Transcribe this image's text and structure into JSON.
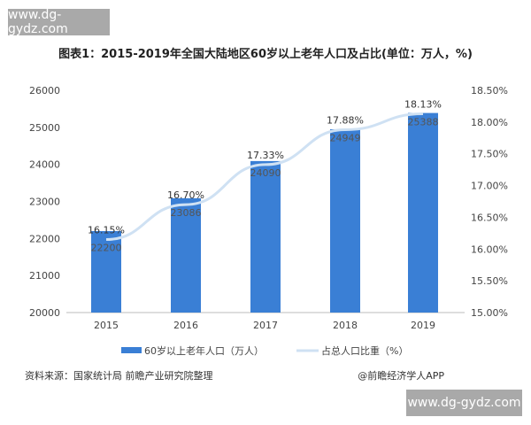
{
  "watermark": "www.dg-gydz.com",
  "chart_data": {
    "type": "bar",
    "title": "图表1：2015-2019年全国大陆地区60岁以上老年人口及占比(单位：万人，%)",
    "categories": [
      "2015",
      "2016",
      "2017",
      "2018",
      "2019"
    ],
    "series": [
      {
        "name": "60岁以上老年人口（万人）",
        "type": "bar",
        "axis": "left",
        "values": [
          22200,
          23086,
          24090,
          24949,
          25388
        ],
        "color": "#3a7fd5"
      },
      {
        "name": "占总人口比重（%）",
        "type": "line",
        "axis": "right",
        "values": [
          16.15,
          16.7,
          17.33,
          17.88,
          18.13
        ],
        "labels": [
          "16.15%",
          "16.70%",
          "17.33%",
          "17.88%",
          "18.13%"
        ],
        "color": "#cfe1f3"
      }
    ],
    "left_axis": {
      "ylim": [
        20000,
        26000
      ],
      "ticks": [
        "20000",
        "21000",
        "22000",
        "23000",
        "24000",
        "25000",
        "26000"
      ]
    },
    "right_axis": {
      "ylim": [
        15.0,
        18.5
      ],
      "ticks": [
        "15.00%",
        "15.50%",
        "16.00%",
        "16.50%",
        "17.00%",
        "17.50%",
        "18.00%",
        "18.50%"
      ]
    },
    "grid": false,
    "legend": "bottom"
  },
  "footer": {
    "source": "资料来源：国家统计局 前瞻产业研究院整理",
    "credit": "@前瞻经济学人APP"
  }
}
